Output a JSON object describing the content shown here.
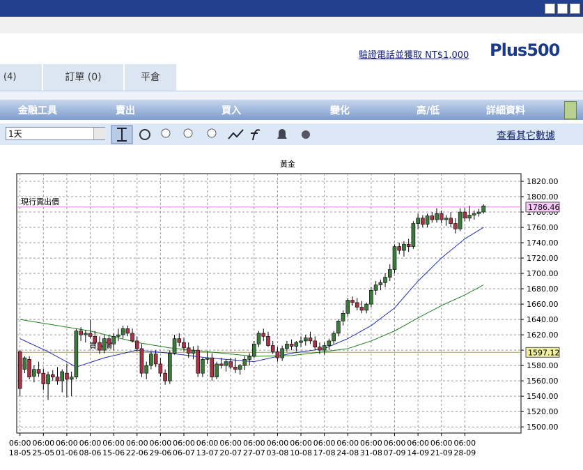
{
  "header": {
    "promo_link": "驗證電話並獲取 NT$1,000",
    "logo": "Plus500"
  },
  "tabs": [
    "(4)",
    "訂單 (0)",
    "平倉"
  ],
  "columns": [
    "金融工具",
    "賣出",
    "買入",
    "變化",
    "高/低",
    "詳細資料"
  ],
  "toolbar": {
    "period": "1天",
    "more_link": "查看其它數據"
  },
  "chart_data": {
    "type": "candlestick",
    "title": "黃金",
    "xlim": [
      -0.7,
      107
    ],
    "ylim": [
      1492,
      1830
    ],
    "xticks": [
      {
        "value": 0,
        "label": [
          "06:00",
          "18-05"
        ]
      },
      {
        "value": 5,
        "label": [
          "06:00",
          "25-05"
        ]
      },
      {
        "value": 10,
        "label": [
          "06:00",
          "01-06"
        ]
      },
      {
        "value": 15,
        "label": [
          "06:00",
          "08-06"
        ]
      },
      {
        "value": 20,
        "label": [
          "06:00",
          "15-06"
        ]
      },
      {
        "value": 25,
        "label": [
          "06:00",
          "22-06"
        ]
      },
      {
        "value": 30,
        "label": [
          "06:00",
          "29-06"
        ]
      },
      {
        "value": 35,
        "label": [
          "06:00",
          "06-07"
        ]
      },
      {
        "value": 40,
        "label": [
          "06:00",
          "13-07"
        ]
      },
      {
        "value": 45,
        "label": [
          "06:00",
          "20-07"
        ]
      },
      {
        "value": 50,
        "label": [
          "06:00",
          "27-07"
        ]
      },
      {
        "value": 55,
        "label": [
          "06:00",
          "03-08"
        ]
      },
      {
        "value": 60,
        "label": [
          "06:00",
          "10-08"
        ]
      },
      {
        "value": 65,
        "label": [
          "06:00",
          "17-08"
        ]
      },
      {
        "value": 70,
        "label": [
          "06:00",
          "24-08"
        ]
      },
      {
        "value": 75,
        "label": [
          "06:00",
          "31-08"
        ]
      },
      {
        "value": 80,
        "label": [
          "06:00",
          "07-09"
        ]
      },
      {
        "value": 85,
        "label": [
          "06:00",
          "14-09"
        ]
      },
      {
        "value": 90,
        "label": [
          "06:00",
          "21-09"
        ]
      },
      {
        "value": 95,
        "label": [
          "06:00",
          "28-09"
        ]
      }
    ],
    "yticks": [
      {
        "value": 1500,
        "label": "1500.00"
      },
      {
        "value": 1520,
        "label": "1520.00"
      },
      {
        "value": 1540,
        "label": "1540.00"
      },
      {
        "value": 1560,
        "label": "1560.00"
      },
      {
        "value": 1580,
        "label": "1580.00"
      },
      {
        "value": 1600,
        "label": "1600.00"
      },
      {
        "value": 1620,
        "label": "1620.00"
      },
      {
        "value": 1640,
        "label": "1640.00"
      },
      {
        "value": 1660,
        "label": "1660.00"
      },
      {
        "value": 1680,
        "label": "1680.00"
      },
      {
        "value": 1700,
        "label": "1700.00"
      },
      {
        "value": 1720,
        "label": "1720.00"
      },
      {
        "value": 1740,
        "label": "1740.00"
      },
      {
        "value": 1760,
        "label": "1760.00"
      },
      {
        "value": 1780,
        "label": "1780.00"
      },
      {
        "value": 1800,
        "label": "1800.00"
      },
      {
        "value": 1820,
        "label": "1820.00"
      }
    ],
    "grid": true,
    "up_color": "#3c7a3c",
    "down_color": "#a83448",
    "ohlc": [
      [
        1598,
        1600,
        1540,
        1550
      ],
      [
        1575,
        1592,
        1570,
        1590
      ],
      [
        1588,
        1592,
        1562,
        1565
      ],
      [
        1566,
        1580,
        1558,
        1575
      ],
      [
        1575,
        1585,
        1565,
        1570
      ],
      [
        1570,
        1576,
        1548,
        1556
      ],
      [
        1556,
        1572,
        1535,
        1568
      ],
      [
        1568,
        1574,
        1560,
        1565
      ],
      [
        1565,
        1578,
        1555,
        1560
      ],
      [
        1560,
        1575,
        1545,
        1572
      ],
      [
        1570,
        1582,
        1538,
        1562
      ],
      [
        1562,
        1572,
        1540,
        1565
      ],
      [
        1565,
        1628,
        1562,
        1625
      ],
      [
        1625,
        1630,
        1612,
        1620
      ],
      [
        1620,
        1626,
        1610,
        1622
      ],
      [
        1622,
        1640,
        1615,
        1618
      ],
      [
        1618,
        1625,
        1606,
        1610
      ],
      [
        1610,
        1618,
        1595,
        1600
      ],
      [
        1600,
        1620,
        1596,
        1615
      ],
      [
        1615,
        1620,
        1604,
        1608
      ],
      [
        1608,
        1622,
        1600,
        1618
      ],
      [
        1618,
        1628,
        1612,
        1620
      ],
      [
        1620,
        1632,
        1615,
        1628
      ],
      [
        1628,
        1632,
        1618,
        1622
      ],
      [
        1622,
        1628,
        1610,
        1612
      ],
      [
        1612,
        1618,
        1598,
        1602
      ],
      [
        1602,
        1608,
        1565,
        1570
      ],
      [
        1570,
        1585,
        1562,
        1580
      ],
      [
        1580,
        1598,
        1575,
        1595
      ],
      [
        1595,
        1600,
        1578,
        1582
      ],
      [
        1582,
        1590,
        1565,
        1570
      ],
      [
        1570,
        1575,
        1555,
        1560
      ],
      [
        1560,
        1600,
        1556,
        1596
      ],
      [
        1596,
        1620,
        1594,
        1615
      ],
      [
        1615,
        1622,
        1605,
        1610
      ],
      [
        1610,
        1616,
        1598,
        1603
      ],
      [
        1603,
        1610,
        1590,
        1596
      ],
      [
        1596,
        1605,
        1588,
        1600
      ],
      [
        1600,
        1606,
        1565,
        1570
      ],
      [
        1570,
        1590,
        1565,
        1588
      ],
      [
        1588,
        1598,
        1582,
        1590
      ],
      [
        1590,
        1596,
        1560,
        1565
      ],
      [
        1565,
        1585,
        1562,
        1582
      ],
      [
        1582,
        1590,
        1576,
        1580
      ],
      [
        1580,
        1588,
        1572,
        1585
      ],
      [
        1585,
        1590,
        1575,
        1578
      ],
      [
        1578,
        1590,
        1570,
        1575
      ],
      [
        1575,
        1582,
        1568,
        1580
      ],
      [
        1580,
        1592,
        1574,
        1588
      ],
      [
        1588,
        1596,
        1580,
        1592
      ],
      [
        1592,
        1612,
        1590,
        1608
      ],
      [
        1608,
        1625,
        1604,
        1622
      ],
      [
        1622,
        1628,
        1612,
        1618
      ],
      [
        1618,
        1624,
        1604,
        1606
      ],
      [
        1606,
        1612,
        1595,
        1598
      ],
      [
        1598,
        1604,
        1585,
        1590
      ],
      [
        1590,
        1606,
        1586,
        1602
      ],
      [
        1602,
        1612,
        1598,
        1608
      ],
      [
        1608,
        1614,
        1600,
        1605
      ],
      [
        1605,
        1612,
        1598,
        1610
      ],
      [
        1610,
        1618,
        1604,
        1612
      ],
      [
        1612,
        1620,
        1606,
        1616
      ],
      [
        1616,
        1624,
        1608,
        1612
      ],
      [
        1612,
        1618,
        1600,
        1604
      ],
      [
        1604,
        1610,
        1595,
        1600
      ],
      [
        1600,
        1610,
        1594,
        1606
      ],
      [
        1606,
        1615,
        1600,
        1612
      ],
      [
        1612,
        1625,
        1608,
        1622
      ],
      [
        1622,
        1640,
        1618,
        1638
      ],
      [
        1638,
        1652,
        1632,
        1648
      ],
      [
        1648,
        1668,
        1644,
        1665
      ],
      [
        1665,
        1670,
        1658,
        1662
      ],
      [
        1662,
        1668,
        1652,
        1656
      ],
      [
        1656,
        1664,
        1648,
        1652
      ],
      [
        1652,
        1662,
        1648,
        1660
      ],
      [
        1660,
        1682,
        1656,
        1678
      ],
      [
        1678,
        1690,
        1672,
        1685
      ],
      [
        1685,
        1692,
        1678,
        1688
      ],
      [
        1688,
        1700,
        1682,
        1695
      ],
      [
        1695,
        1712,
        1690,
        1705
      ],
      [
        1705,
        1738,
        1700,
        1735
      ],
      [
        1735,
        1740,
        1725,
        1730
      ],
      [
        1730,
        1742,
        1722,
        1738
      ],
      [
        1738,
        1745,
        1728,
        1735
      ],
      [
        1735,
        1768,
        1732,
        1765
      ],
      [
        1765,
        1778,
        1758,
        1772
      ],
      [
        1772,
        1776,
        1760,
        1764
      ],
      [
        1764,
        1778,
        1760,
        1775
      ],
      [
        1775,
        1780,
        1766,
        1770
      ],
      [
        1770,
        1785,
        1766,
        1778
      ],
      [
        1778,
        1782,
        1765,
        1770
      ],
      [
        1770,
        1776,
        1762,
        1772
      ],
      [
        1772,
        1780,
        1760,
        1765
      ],
      [
        1765,
        1772,
        1752,
        1758
      ],
      [
        1758,
        1785,
        1755,
        1780
      ],
      [
        1780,
        1785,
        1768,
        1772
      ],
      [
        1772,
        1788,
        1768,
        1776
      ],
      [
        1776,
        1782,
        1770,
        1778
      ],
      [
        1778,
        1784,
        1774,
        1780
      ],
      [
        1780,
        1790,
        1778,
        1788
      ]
    ],
    "series": [
      {
        "color": "#2030b0",
        "x": [
          0,
          6,
          12,
          18,
          25,
          32,
          40,
          50,
          58,
          65,
          70,
          75,
          80,
          85,
          90,
          95,
          99
        ],
        "values": [
          1615,
          1598,
          1578,
          1590,
          1600,
          1596,
          1590,
          1585,
          1596,
          1602,
          1615,
          1632,
          1655,
          1690,
          1720,
          1745,
          1760
        ]
      },
      {
        "color": "#208020",
        "x": [
          0,
          8,
          15,
          25,
          32,
          40,
          50,
          58,
          65,
          70,
          75,
          80,
          85,
          90,
          95,
          99
        ],
        "values": [
          1640,
          1632,
          1625,
          1610,
          1603,
          1598,
          1592,
          1593,
          1598,
          1602,
          1612,
          1625,
          1642,
          1658,
          1672,
          1685
        ]
      }
    ],
    "price_lines": [
      {
        "label": "現行賣出價",
        "value": 1786.46,
        "color": "#e080e0",
        "box": "#f8c8f8"
      },
      {
        "label": "買入價",
        "value": 1597.12,
        "color": "#a0a040",
        "box": "#f0f0a0"
      }
    ]
  }
}
